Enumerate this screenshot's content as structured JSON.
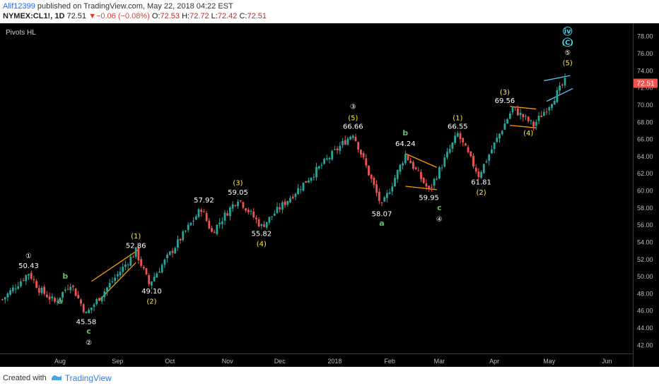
{
  "header": {
    "author": "Alif12399",
    "published_text": " published on TradingView.com, May 22, 2018 04:22 EST",
    "symbol": "NYMEX:CL1!, 1D",
    "last": "72.51",
    "change_arrow": "▼",
    "change": "−0.06 (−0.08%)",
    "o_label": "O:",
    "o": "72.53",
    "h_label": "H:",
    "h": "72.72",
    "l_label": "L:",
    "l": "72.42",
    "c_label": "C:",
    "c": "72.51"
  },
  "indicator": "Pivots HL",
  "price_tag": "72.51",
  "footer": {
    "created_with": "Created with",
    "brand": "TradingView"
  },
  "colors": {
    "background": "#000000",
    "bull": "#26a69a",
    "bear": "#ef5350",
    "orange_lines": "#ff9800",
    "cyan_lines": "#4fc3f7",
    "label_white": "#ffffff",
    "label_yellow": "#ffeb3b",
    "label_green": "#66bb6a",
    "label_cyan": "#4dd0e1",
    "price_tag": "#ef5350"
  },
  "chart_data": {
    "type": "candlestick",
    "symbol": "NYMEX:CL1!",
    "interval": "1D",
    "ylim": [
      41,
      79.5
    ],
    "y_ticks": [
      "42.00",
      "44.00",
      "46.00",
      "48.00",
      "50.00",
      "52.00",
      "54.00",
      "56.00",
      "58.00",
      "60.00",
      "62.00",
      "64.00",
      "66.00",
      "68.00",
      "70.00",
      "72.00",
      "74.00",
      "76.00",
      "78.00"
    ],
    "x_ticks": [
      "Aug",
      "Sep",
      "Oct",
      "Nov",
      "Dec",
      "2018",
      "Feb",
      "Mar",
      "Apr",
      "May",
      "Jun"
    ],
    "x_tick_days": [
      22,
      44,
      64,
      86,
      106,
      127,
      148,
      167,
      188,
      209,
      231
    ],
    "last_price": 72.51,
    "pivot_path": [
      [
        0,
        47.3
      ],
      [
        10,
        50.4
      ],
      [
        14,
        48.5
      ],
      [
        20,
        47.0
      ],
      [
        26,
        49.2
      ],
      [
        32,
        45.6
      ],
      [
        51,
        52.9
      ],
      [
        56,
        49.1
      ],
      [
        76,
        57.9
      ],
      [
        80,
        55.1
      ],
      [
        90,
        59.1
      ],
      [
        99,
        55.8
      ],
      [
        134,
        66.7
      ],
      [
        145,
        58.1
      ],
      [
        154,
        64.2
      ],
      [
        163,
        60.0
      ],
      [
        174,
        66.6
      ],
      [
        182,
        61.8
      ],
      [
        195,
        69.6
      ],
      [
        203,
        67.6
      ],
      [
        209,
        70.0
      ],
      [
        215,
        72.7
      ]
    ],
    "labels": [
      {
        "text": "①",
        "day": 10,
        "price": 52.1,
        "color": "white"
      },
      {
        "text": "50.43",
        "day": 10,
        "price": 50.95,
        "color": "white"
      },
      {
        "text": "b",
        "day": 24,
        "price": 49.7,
        "color": "green"
      },
      {
        "text": "a",
        "day": 22,
        "price": 46.8,
        "color": "green"
      },
      {
        "text": "45.58",
        "day": 32,
        "price": 44.4,
        "color": "white"
      },
      {
        "text": "c",
        "day": 33,
        "price": 43.3,
        "color": "green"
      },
      {
        "text": "②",
        "day": 33,
        "price": 42.0,
        "color": "white"
      },
      {
        "text": "(1)",
        "day": 51,
        "price": 54.4,
        "color": "yellow"
      },
      {
        "text": "52.86",
        "day": 51,
        "price": 53.3,
        "color": "white"
      },
      {
        "text": "49.10",
        "day": 57,
        "price": 48.0,
        "color": "white"
      },
      {
        "text": "(2)",
        "day": 57,
        "price": 46.8,
        "color": "yellow"
      },
      {
        "text": "57.92",
        "day": 77,
        "price": 58.6,
        "color": "white"
      },
      {
        "text": "(3)",
        "day": 90,
        "price": 60.6,
        "color": "yellow"
      },
      {
        "text": "59.05",
        "day": 90,
        "price": 59.5,
        "color": "white"
      },
      {
        "text": "55.82",
        "day": 99,
        "price": 54.7,
        "color": "white"
      },
      {
        "text": "(4)",
        "day": 99,
        "price": 53.5,
        "color": "yellow"
      },
      {
        "text": "③",
        "day": 134,
        "price": 69.5,
        "color": "white"
      },
      {
        "text": "(5)",
        "day": 134,
        "price": 68.2,
        "color": "yellow"
      },
      {
        "text": "66.66",
        "day": 134,
        "price": 67.2,
        "color": "white"
      },
      {
        "text": "b",
        "day": 154,
        "price": 66.4,
        "color": "green"
      },
      {
        "text": "64.24",
        "day": 154,
        "price": 65.2,
        "color": "white"
      },
      {
        "text": "59.95",
        "day": 163,
        "price": 58.9,
        "color": "white"
      },
      {
        "text": "c",
        "day": 167,
        "price": 57.7,
        "color": "green"
      },
      {
        "text": "④",
        "day": 167,
        "price": 56.4,
        "color": "white"
      },
      {
        "text": "58.07",
        "day": 145,
        "price": 57.0,
        "color": "white"
      },
      {
        "text": "a",
        "day": 145,
        "price": 55.9,
        "color": "green"
      },
      {
        "text": "(1)",
        "day": 174,
        "price": 68.2,
        "color": "yellow"
      },
      {
        "text": "66.55",
        "day": 174,
        "price": 67.2,
        "color": "white"
      },
      {
        "text": "61.81",
        "day": 183,
        "price": 60.7,
        "color": "white"
      },
      {
        "text": "(2)",
        "day": 183,
        "price": 59.5,
        "color": "yellow"
      },
      {
        "text": "(3)",
        "day": 192,
        "price": 71.2,
        "color": "yellow"
      },
      {
        "text": "69.56",
        "day": 192,
        "price": 70.2,
        "color": "white"
      },
      {
        "text": "(4)",
        "day": 201,
        "price": 66.4,
        "color": "yellow"
      },
      {
        "text": "iv",
        "day": 216,
        "price": 78.3,
        "color": "cyan"
      },
      {
        "text": "(C)",
        "day": 216,
        "price": 77.0,
        "color": "cyan"
      },
      {
        "text": "⑤",
        "day": 216,
        "price": 75.8,
        "color": "white"
      },
      {
        "text": "(5)",
        "day": 216,
        "price": 74.6,
        "color": "yellow"
      }
    ]
  }
}
